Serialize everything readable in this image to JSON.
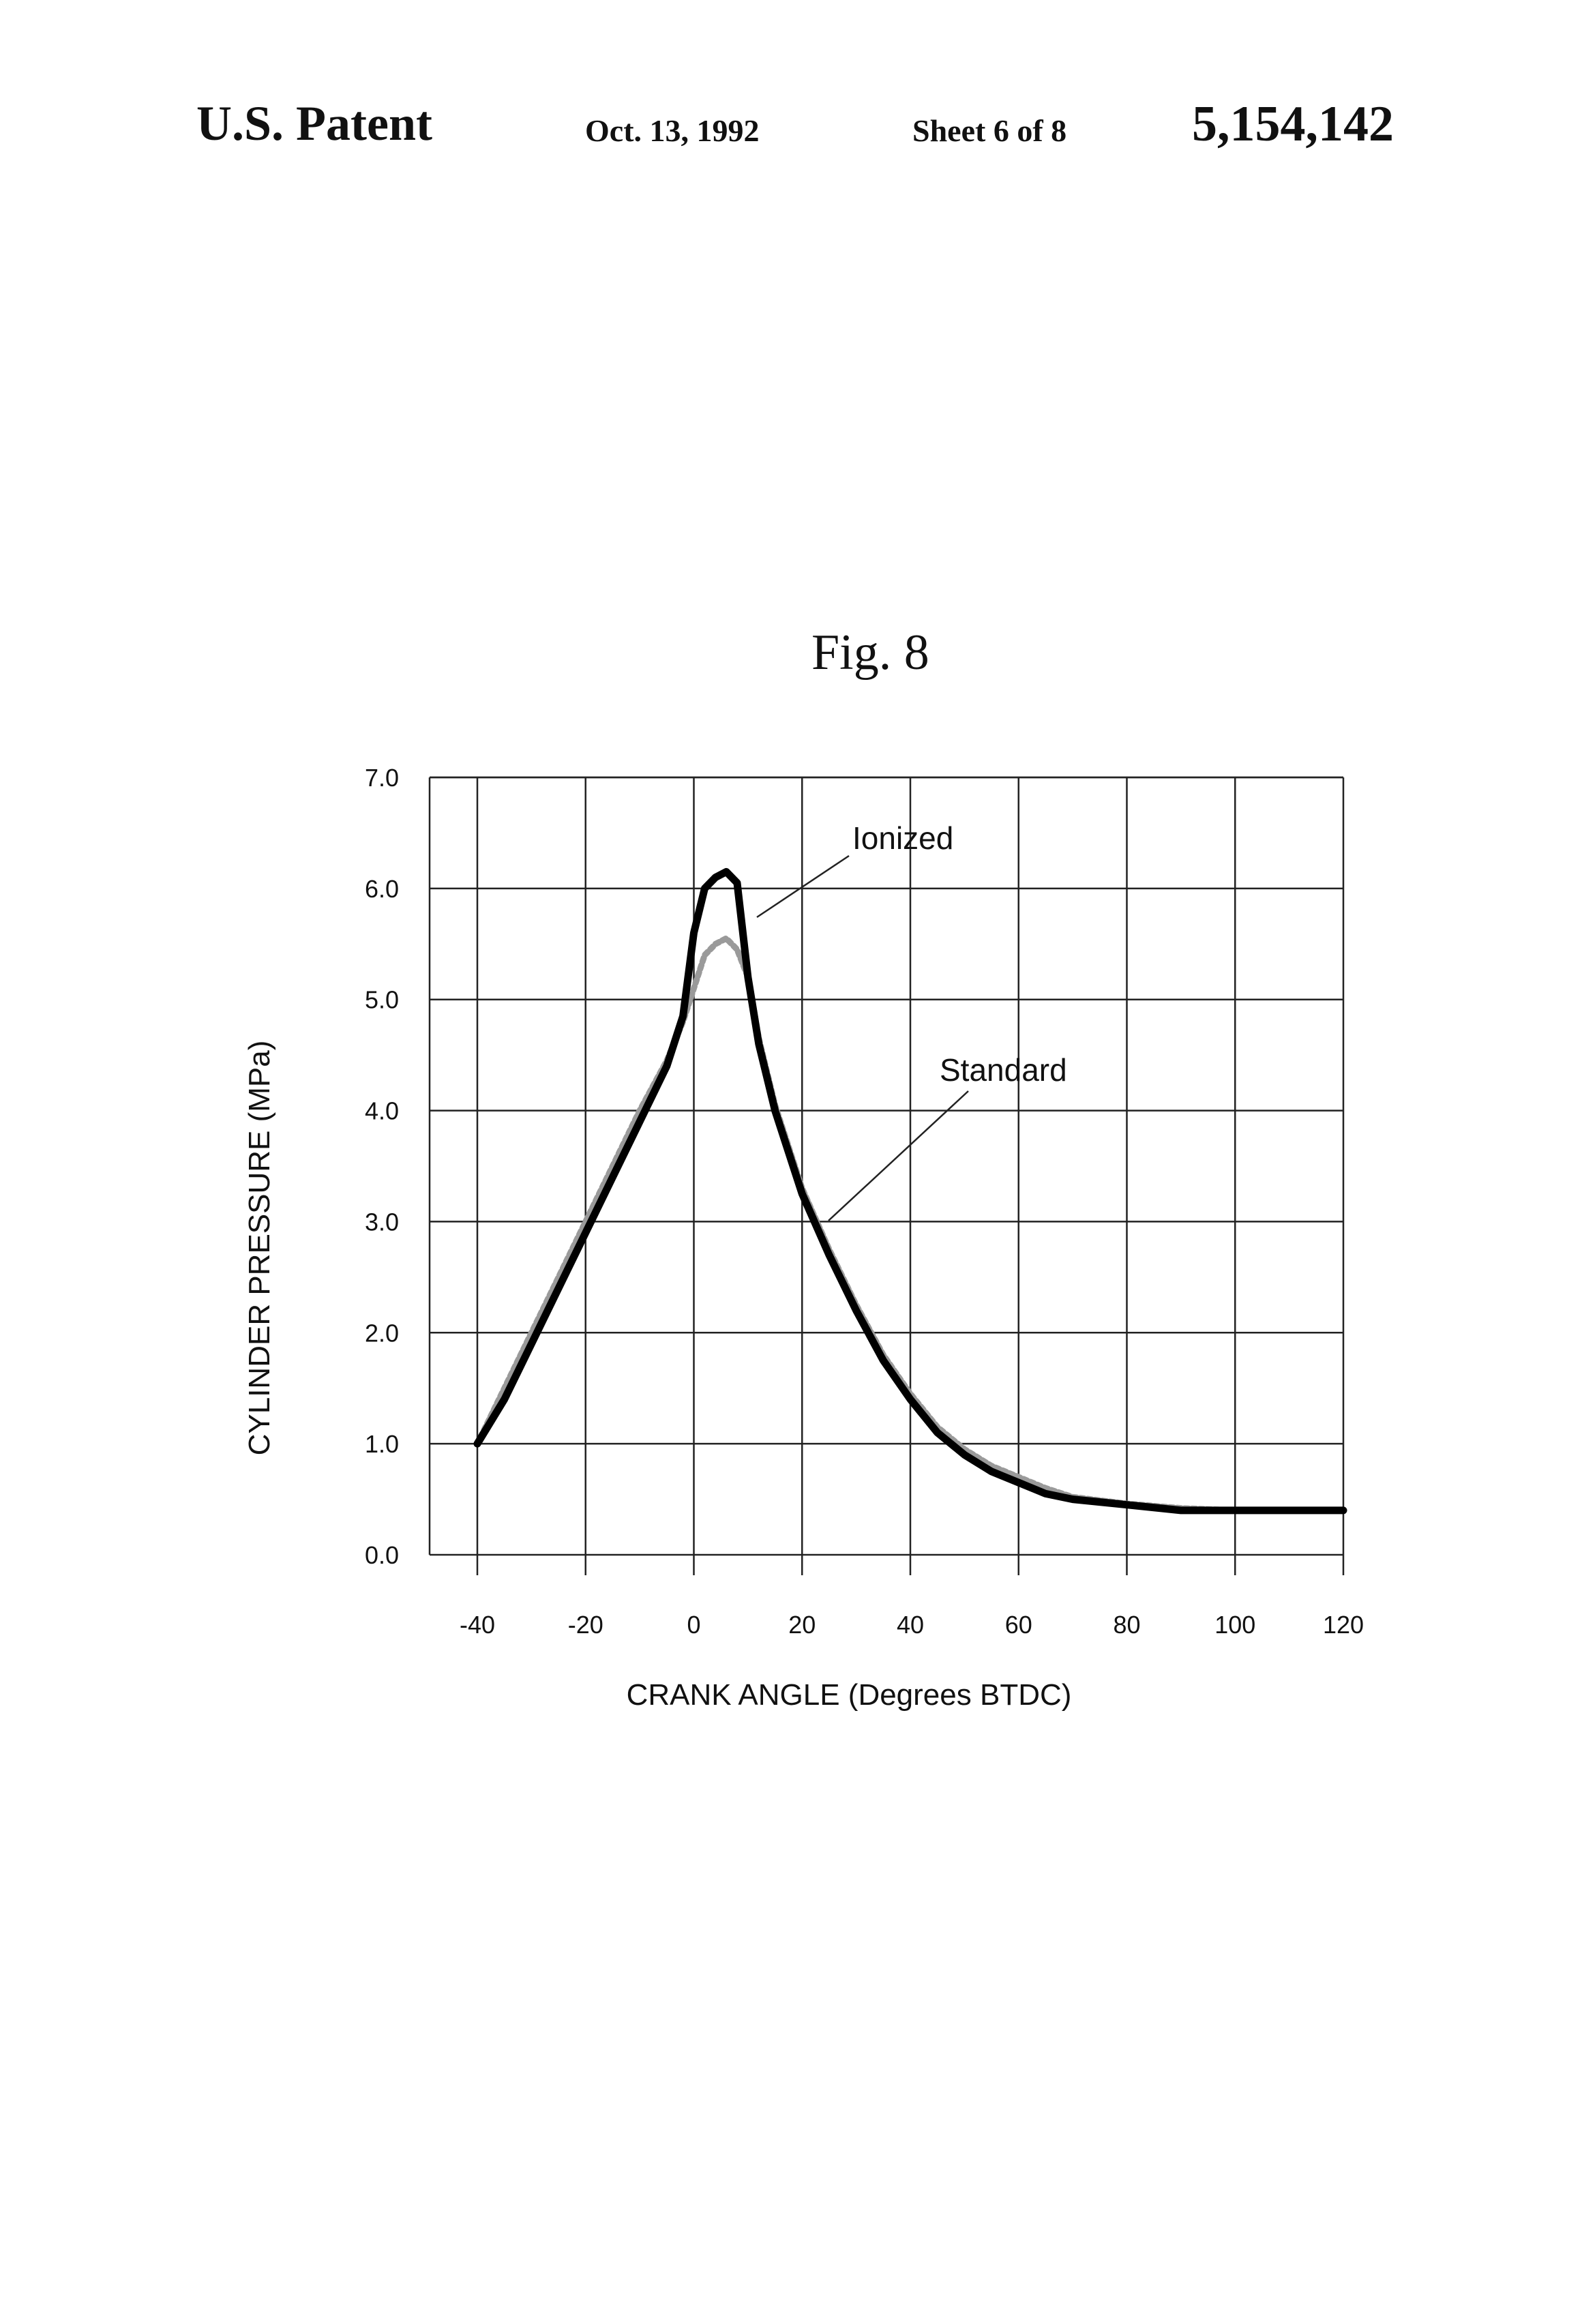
{
  "header": {
    "left": "U.S. Patent",
    "date": "Oct. 13, 1992",
    "sheet": "Sheet 6 of 8",
    "patent_number": "5,154,142"
  },
  "chart_data": {
    "type": "line",
    "title": "Fig. 8",
    "xlabel": "CRANK ANGLE (Degrees BTDC)",
    "ylabel": "CYLINDER PRESSURE (MPa)",
    "xlim": [
      -40,
      120
    ],
    "ylim": [
      0,
      7
    ],
    "xticks": [
      "-40",
      "-20",
      "0",
      "20",
      "40",
      "60",
      "80",
      "100",
      "120"
    ],
    "yticks": [
      "0.0",
      "1.0",
      "2.0",
      "3.0",
      "4.0",
      "5.0",
      "6.0",
      "7.0"
    ],
    "grid": true,
    "series": [
      {
        "name": "Ionized",
        "color": "#000000",
        "x": [
          -40,
          -35,
          -30,
          -25,
          -20,
          -15,
          -10,
          -5,
          -2,
          0,
          2,
          4,
          6,
          8,
          10,
          12,
          15,
          20,
          25,
          30,
          35,
          40,
          45,
          50,
          55,
          60,
          65,
          70,
          80,
          90,
          100,
          110,
          120
        ],
        "y": [
          1.0,
          1.4,
          1.9,
          2.4,
          2.9,
          3.4,
          3.9,
          4.4,
          4.85,
          5.6,
          6.0,
          6.1,
          6.15,
          6.05,
          5.2,
          4.6,
          4.0,
          3.25,
          2.7,
          2.2,
          1.75,
          1.4,
          1.1,
          0.9,
          0.75,
          0.65,
          0.55,
          0.5,
          0.45,
          0.4,
          0.4,
          0.4,
          0.4
        ]
      },
      {
        "name": "Standard",
        "color": "#9a9a9a",
        "x": [
          -40,
          -35,
          -30,
          -25,
          -20,
          -15,
          -10,
          -5,
          -2,
          0,
          2,
          4,
          6,
          8,
          10,
          12,
          15,
          20,
          25,
          30,
          35,
          40,
          45,
          50,
          55,
          60,
          65,
          70,
          80,
          90,
          100,
          110,
          120
        ],
        "y": [
          1.0,
          1.5,
          2.0,
          2.5,
          3.0,
          3.5,
          4.0,
          4.45,
          4.8,
          5.1,
          5.4,
          5.5,
          5.55,
          5.45,
          5.2,
          4.65,
          4.05,
          3.3,
          2.75,
          2.25,
          1.8,
          1.45,
          1.15,
          0.95,
          0.8,
          0.7,
          0.6,
          0.52,
          0.46,
          0.42,
          0.4,
          0.4,
          0.4
        ]
      }
    ],
    "annotations": [
      {
        "text": "Ionized",
        "series": "Ionized"
      },
      {
        "text": "Standard",
        "series": "Standard"
      }
    ]
  }
}
